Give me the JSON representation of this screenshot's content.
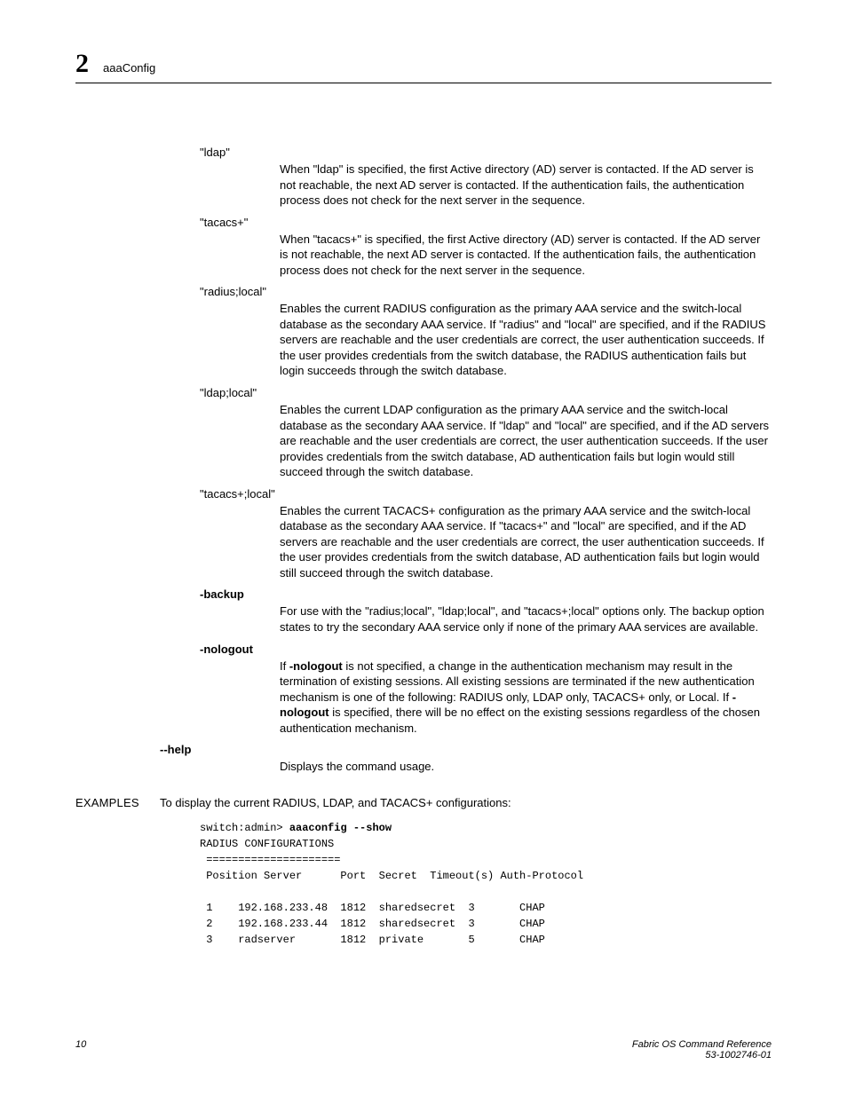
{
  "header": {
    "chapter_number": "2",
    "chapter_title": "aaaConfig"
  },
  "entries": [
    {
      "term": "\"ldap\"",
      "bold": false,
      "desc": "When \"ldap\" is specified, the first Active directory (AD) server is contacted. If the AD server is not reachable, the next AD server is contacted. If the authentication fails, the authentication process does not check for the next server in the sequence."
    },
    {
      "term": "\"tacacs+\"",
      "bold": false,
      "desc": "When \"tacacs+\" is specified, the first Active directory (AD) server is contacted. If the AD server is not reachable, the next AD server is contacted. If the authentication fails, the authentication process does not check for the next server in the sequence."
    },
    {
      "term": "\"radius;local\"",
      "bold": false,
      "desc": "Enables the current RADIUS configuration as the primary AAA service and the switch-local database as the secondary AAA service. If \"radius\" and \"local\" are specified, and if the RADIUS servers are reachable and the user credentials are correct, the user authentication succeeds. If the user provides credentials from the switch database, the RADIUS authentication fails but login succeeds through the switch database."
    },
    {
      "term": "\"ldap;local\"",
      "bold": false,
      "desc": "Enables the current LDAP configuration as the primary AAA service and the switch-local database as the secondary AAA service. If \"ldap\" and \"local\" are specified, and if the AD servers are reachable and the user credentials are correct, the user authentication succeeds. If the user provides credentials from the switch database, AD authentication fails but login would still succeed through the switch database."
    },
    {
      "term": "\"tacacs+;local\"",
      "bold": false,
      "desc": "Enables the current TACACS+ configuration as the primary AAA service and the switch-local database as the secondary AAA service. If \"tacacs+\" and \"local\" are specified, and if the AD servers are reachable and the user credentials are correct, the user authentication succeeds. If the user provides credentials from the switch database, AD authentication fails but login would still succeed through the switch database."
    },
    {
      "term": "-backup",
      "bold": true,
      "desc": "For use with the \"radius;local\", \"ldap;local\", and \"tacacs+;local\" options only. The backup option states to try the secondary AAA service only if none of the primary AAA services are available."
    },
    {
      "term": "-nologout",
      "bold": true,
      "desc_html": "If <b class=\"inline\">-nologout</b> is not specified, a change in the authentication mechanism may result in the termination of existing sessions. All existing sessions are terminated if the new authentication mechanism is one of the following: RADIUS only, LDAP only, TACACS+ only, or Local. If <b class=\"inline\">-nologout</b> is specified, there will be no effect on the existing sessions regardless of the chosen authentication mechanism."
    }
  ],
  "help": {
    "term": "--help",
    "desc": "Displays the command usage."
  },
  "examples": {
    "label": "EXAMPLES",
    "intro": "To display the current RADIUS, LDAP, and TACACS+ configurations:",
    "code_prompt": "switch:admin> ",
    "code_command": "aaaconfig --show",
    "code_lines": [
      "RADIUS CONFIGURATIONS",
      " =====================",
      " Position Server      Port  Secret  Timeout(s) Auth-Protocol",
      "",
      " 1    192.168.233.48  1812  sharedsecret  3       CHAP",
      " 2    192.168.233.44  1812  sharedsecret  3       CHAP",
      " 3    radserver       1812  private       5       CHAP"
    ]
  },
  "footer": {
    "page_number": "10",
    "doc_title": "Fabric OS Command Reference",
    "doc_id": "53-1002746-01"
  }
}
